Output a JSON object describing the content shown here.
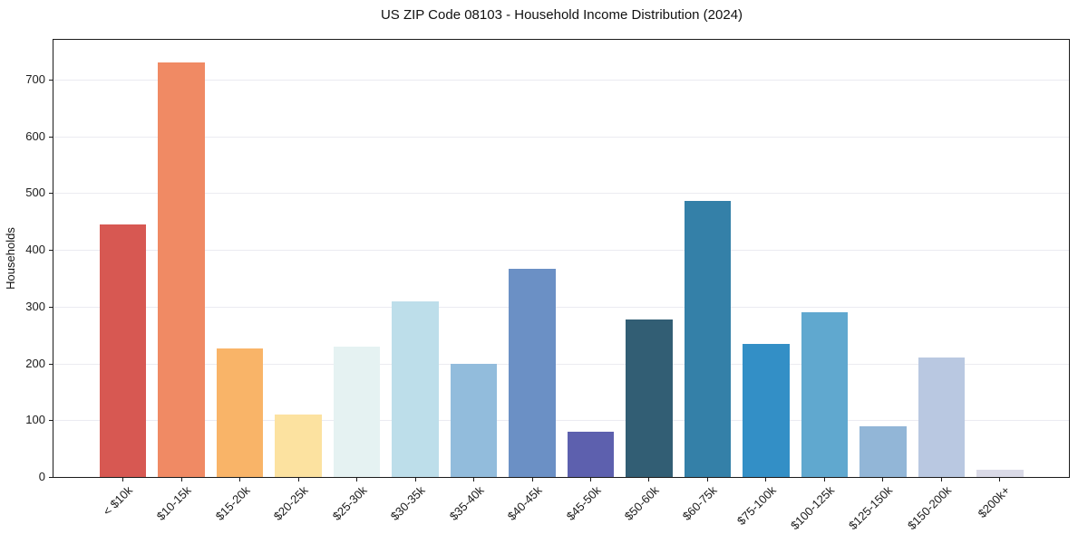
{
  "title": "US ZIP Code 08103 - Household Income Distribution (2024)",
  "chart_data": {
    "type": "bar",
    "title": "US ZIP Code 08103 - Household Income Distribution (2024)",
    "xlabel": "",
    "ylabel": "Households",
    "categories": [
      "< $10k",
      "$10-15k",
      "$15-20k",
      "$20-25k",
      "$25-30k",
      "$30-35k",
      "$35-40k",
      "$40-45k",
      "$45-50k",
      "$50-60k",
      "$60-75k",
      "$75-100k",
      "$100-125k",
      "$125-150k",
      "$150-200k",
      "$200k+"
    ],
    "values": [
      445,
      730,
      227,
      110,
      230,
      310,
      200,
      367,
      80,
      277,
      486,
      234,
      290,
      90,
      210,
      13
    ],
    "bar_colors": [
      "#d75852",
      "#f08a64",
      "#f9b468",
      "#fce2a0",
      "#e5f2f2",
      "#bddeea",
      "#92bcdc",
      "#6b90c5",
      "#5d60ae",
      "#325e74",
      "#3480a8",
      "#338fc6",
      "#60a8cf",
      "#92b6d7",
      "#b9c8e1",
      "#dadae7"
    ],
    "ylim": [
      0,
      770
    ],
    "yticks": [
      0,
      100,
      200,
      300,
      400,
      500,
      600,
      700
    ],
    "grid": "horizontal",
    "legend": "none",
    "plot_background": "#ffffff",
    "grid_color": "#ebebf1",
    "spine_color": "#1b1b1b",
    "text_color": "#1b1b1b"
  }
}
